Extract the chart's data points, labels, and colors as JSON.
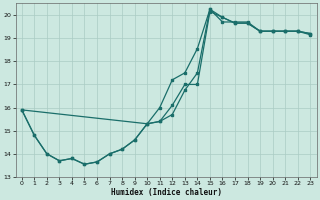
{
  "xlabel": "Humidex (Indice chaleur)",
  "bg_color": "#cce8e0",
  "grid_color": "#aaccc4",
  "line_color": "#1a6e6a",
  "xlim": [
    -0.5,
    23.5
  ],
  "ylim": [
    13,
    20.5
  ],
  "xticks": [
    0,
    1,
    2,
    3,
    4,
    5,
    6,
    7,
    8,
    9,
    10,
    11,
    12,
    13,
    14,
    15,
    16,
    17,
    18,
    19,
    20,
    21,
    22,
    23
  ],
  "yticks": [
    13,
    14,
    15,
    16,
    17,
    18,
    19,
    20
  ],
  "series1_x": [
    0,
    1,
    2,
    3,
    4,
    5,
    6,
    7,
    8,
    9,
    10,
    11,
    12,
    13,
    14,
    15,
    16,
    17,
    18,
    19,
    20,
    21,
    22,
    23
  ],
  "series1_y": [
    15.9,
    14.8,
    14.0,
    13.7,
    13.8,
    13.55,
    13.65,
    14.0,
    14.2,
    14.6,
    15.3,
    15.4,
    16.1,
    17.0,
    17.0,
    20.15,
    19.9,
    19.65,
    19.65,
    19.3,
    19.3,
    19.3,
    19.3,
    19.15
  ],
  "series2_x": [
    0,
    1,
    2,
    3,
    4,
    5,
    6,
    7,
    8,
    9,
    10,
    11,
    12,
    13,
    14,
    15,
    16,
    17,
    18,
    19,
    20,
    21,
    22,
    23
  ],
  "series2_y": [
    15.9,
    14.8,
    14.0,
    13.7,
    13.8,
    13.55,
    13.65,
    14.0,
    14.2,
    14.6,
    15.3,
    16.0,
    17.2,
    17.5,
    18.55,
    20.25,
    19.9,
    19.65,
    19.65,
    19.3,
    19.3,
    19.3,
    19.3,
    19.2
  ],
  "series3_x": [
    0,
    10,
    11,
    12,
    13,
    14,
    15,
    16,
    17,
    18,
    19,
    20,
    21,
    22,
    23
  ],
  "series3_y": [
    15.9,
    15.3,
    15.4,
    15.7,
    16.75,
    17.5,
    20.25,
    19.7,
    19.7,
    19.7,
    19.3,
    19.3,
    19.3,
    19.3,
    19.2
  ]
}
